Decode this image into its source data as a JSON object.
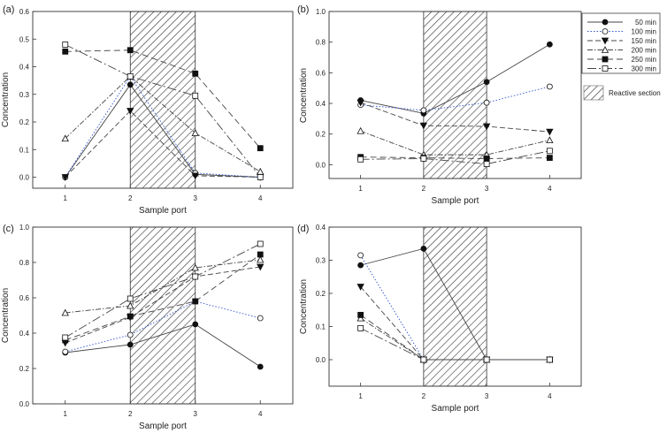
{
  "legend": {
    "series_labels": [
      "50 min",
      "100 min",
      "150 min",
      "200 min",
      "250 min",
      "300 min"
    ],
    "reactive_label": "Reactive section"
  },
  "chart_data": [
    {
      "type": "line",
      "panel_label": "(a)",
      "xlabel": "Sample port",
      "ylabel": "Concentration",
      "x": [
        1,
        2,
        3,
        4
      ],
      "xticks": [
        "1",
        "2",
        "3",
        "4"
      ],
      "xlim": [
        0.5,
        4.5
      ],
      "ylim": [
        -0.04,
        0.6
      ],
      "yticks": [
        0.0,
        0.1,
        0.2,
        0.3,
        0.4,
        0.5,
        0.6
      ],
      "yticklabels": [
        "0.0",
        "0.1",
        "0.2",
        "0.3",
        "0.4",
        "0.5",
        "0.6"
      ],
      "reactive_section": [
        2,
        3
      ],
      "series": [
        {
          "name": "50 min",
          "values": [
            0.0,
            0.335,
            0.01,
            0.0
          ]
        },
        {
          "name": "100 min",
          "values": [
            0.0,
            0.365,
            0.015,
            0.0
          ]
        },
        {
          "name": "150 min",
          "values": [
            0.0,
            0.24,
            0.005,
            0.0
          ]
        },
        {
          "name": "200 min",
          "values": [
            0.14,
            0.365,
            0.16,
            0.02
          ]
        },
        {
          "name": "250 min",
          "values": [
            0.455,
            0.46,
            0.375,
            0.105
          ]
        },
        {
          "name": "300 min",
          "values": [
            0.48,
            0.365,
            0.295,
            0.0
          ]
        }
      ]
    },
    {
      "type": "line",
      "panel_label": "(b)",
      "xlabel": "Sample port",
      "ylabel": "Concentration",
      "x": [
        1,
        2,
        3,
        4
      ],
      "xticks": [
        "1",
        "2",
        "3",
        "4"
      ],
      "xlim": [
        0.5,
        4.5
      ],
      "ylim": [
        -0.09,
        1.0
      ],
      "yticks": [
        0.0,
        0.2,
        0.4,
        0.6,
        0.8,
        1.0
      ],
      "yticklabels": [
        "0.0",
        "0.2",
        "0.4",
        "0.6",
        "0.8",
        "1.0"
      ],
      "reactive_section": [
        2,
        3
      ],
      "series": [
        {
          "name": "50 min",
          "values": [
            0.42,
            0.335,
            0.54,
            0.785
          ]
        },
        {
          "name": "100 min",
          "values": [
            0.39,
            0.355,
            0.405,
            0.51
          ]
        },
        {
          "name": "150 min",
          "values": [
            0.405,
            0.255,
            0.25,
            0.215
          ]
        },
        {
          "name": "200 min",
          "values": [
            0.22,
            0.065,
            0.065,
            0.16
          ]
        },
        {
          "name": "250 min",
          "values": [
            0.05,
            0.045,
            0.04,
            0.045
          ]
        },
        {
          "name": "300 min",
          "values": [
            0.035,
            0.04,
            0.005,
            0.09
          ]
        }
      ]
    },
    {
      "type": "line",
      "panel_label": "(c)",
      "xlabel": "Sample port",
      "ylabel": "Concentration",
      "x": [
        1,
        2,
        3,
        4
      ],
      "xticks": [
        "1",
        "2",
        "3",
        "4"
      ],
      "xlim": [
        0.5,
        4.5
      ],
      "ylim": [
        0.0,
        1.0
      ],
      "yticks": [
        0.0,
        0.2,
        0.4,
        0.6,
        0.8,
        1.0
      ],
      "yticklabels": [
        "0.0",
        "0.2",
        "0.4",
        "0.6",
        "0.8",
        "1.0"
      ],
      "reactive_section": [
        2,
        3
      ],
      "series": [
        {
          "name": "50 min",
          "values": [
            0.29,
            0.335,
            0.45,
            0.21
          ]
        },
        {
          "name": "100 min",
          "values": [
            0.295,
            0.39,
            0.58,
            0.485
          ]
        },
        {
          "name": "150 min",
          "values": [
            0.345,
            0.49,
            0.72,
            0.775
          ]
        },
        {
          "name": "200 min",
          "values": [
            0.515,
            0.555,
            0.77,
            0.815
          ]
        },
        {
          "name": "250 min",
          "values": [
            0.36,
            0.495,
            0.58,
            0.845
          ]
        },
        {
          "name": "300 min",
          "values": [
            0.375,
            0.595,
            0.72,
            0.905
          ]
        }
      ]
    },
    {
      "type": "line",
      "panel_label": "(d)",
      "xlabel": "Sample port",
      "ylabel": "Concentration",
      "x": [
        1,
        2,
        3,
        4
      ],
      "xticks": [
        "1",
        "2",
        "3",
        "4"
      ],
      "xlim": [
        0.5,
        4.5
      ],
      "ylim": [
        -0.08,
        0.4
      ],
      "yticks": [
        0.0,
        0.1,
        0.2,
        0.3,
        0.4
      ],
      "yticklabels": [
        "0.0",
        "0.1",
        "0.2",
        "0.3",
        "0.4"
      ],
      "reactive_section": [
        2,
        3
      ],
      "series": [
        {
          "name": "50 min",
          "values": [
            0.285,
            0.335,
            0.0,
            0.0
          ]
        },
        {
          "name": "100 min",
          "values": [
            0.315,
            0.0,
            0.0,
            0.0
          ]
        },
        {
          "name": "150 min",
          "values": [
            0.22,
            0.0,
            0.0,
            0.0
          ]
        },
        {
          "name": "200 min",
          "values": [
            0.125,
            0.0,
            0.0,
            0.0
          ]
        },
        {
          "name": "250 min",
          "values": [
            0.135,
            0.0,
            0.0,
            0.0
          ]
        },
        {
          "name": "300 min",
          "values": [
            0.095,
            0.0,
            0.0,
            0.0
          ]
        }
      ]
    }
  ]
}
